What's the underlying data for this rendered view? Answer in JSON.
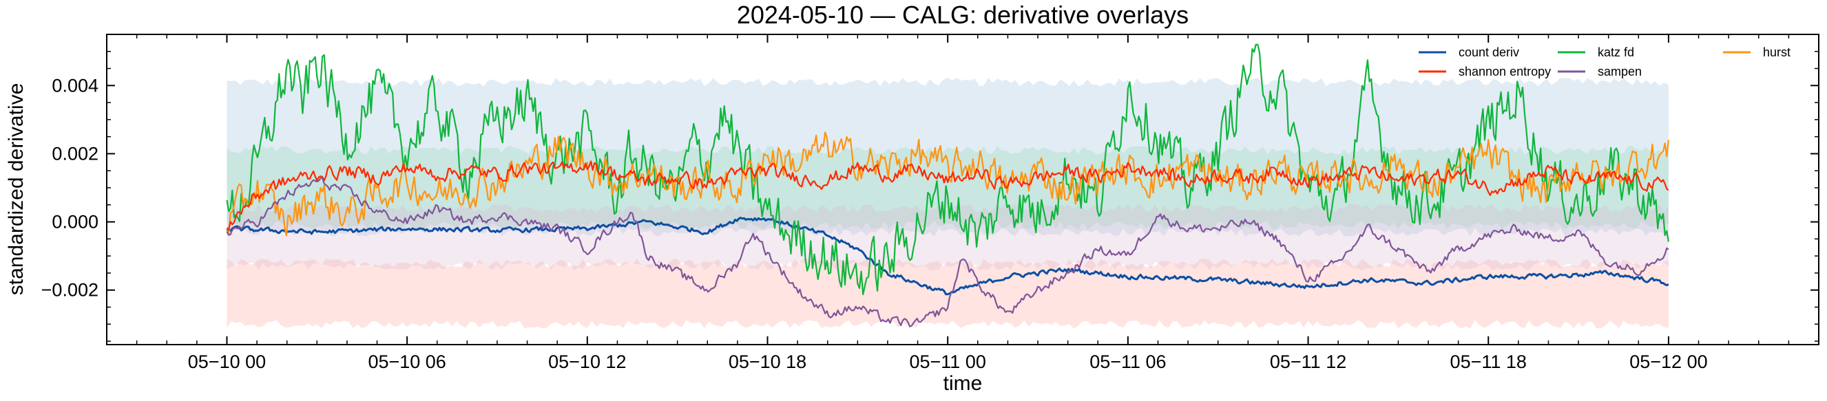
{
  "chart_data": {
    "type": "line",
    "title": "2024-05-10 — CALG: derivative overlays",
    "xlabel": "time",
    "ylabel": "standardized derivative",
    "x_range_hours": [
      -4,
      53
    ],
    "ylim": [
      -0.0036,
      0.0055
    ],
    "x_ticks": [
      {
        "hours": 0,
        "label": "05−10 00"
      },
      {
        "hours": 6,
        "label": "05−10 06"
      },
      {
        "hours": 12,
        "label": "05−10 12"
      },
      {
        "hours": 18,
        "label": "05−10 18"
      },
      {
        "hours": 24,
        "label": "05−11 00"
      },
      {
        "hours": 30,
        "label": "05−11 06"
      },
      {
        "hours": 36,
        "label": "05−11 12"
      },
      {
        "hours": 42,
        "label": "05−11 18"
      },
      {
        "hours": 48,
        "label": "05−12 00"
      }
    ],
    "y_ticks": [
      {
        "value": 0.004,
        "label": "0.004"
      },
      {
        "value": 0.002,
        "label": "0.002"
      },
      {
        "value": 0.0,
        "label": "0.000"
      },
      {
        "value": -0.002,
        "label": "−0.002"
      }
    ],
    "legend_position": "top-right",
    "bands": [
      {
        "name": "katz fd band",
        "color": "#c6d9ec",
        "opacity": 0.5,
        "lower": -0.0003,
        "upper": 0.0041
      },
      {
        "name": "shannon entropy band",
        "color": "#ffb3a8",
        "opacity": 0.35,
        "lower": -0.003,
        "upper": -0.0012
      },
      {
        "name": "hurst band",
        "color": "#8fd6b0",
        "opacity": 0.3,
        "lower": -0.0001,
        "upper": 0.0021
      },
      {
        "name": "sampen band",
        "color": "#d9b8d0",
        "opacity": 0.3,
        "lower": -0.0013,
        "upper": 0.0004
      }
    ],
    "series": [
      {
        "name": "count deriv",
        "color": "#0c4ea2",
        "width": 3,
        "points": [
          [
            0,
            -0.0002
          ],
          [
            3,
            -0.0003
          ],
          [
            6,
            -0.0002
          ],
          [
            9,
            -0.00025
          ],
          [
            12,
            -0.0002
          ],
          [
            14,
            0.0
          ],
          [
            16,
            -0.0003
          ],
          [
            17,
            0.0001
          ],
          [
            18,
            0.0001
          ],
          [
            20,
            -0.0004
          ],
          [
            21,
            -0.0008
          ],
          [
            22,
            -0.0015
          ],
          [
            23,
            -0.0018
          ],
          [
            24,
            -0.0021
          ],
          [
            26,
            -0.0016
          ],
          [
            28,
            -0.0014
          ],
          [
            30,
            -0.0016
          ],
          [
            33,
            -0.0017
          ],
          [
            36,
            -0.0019
          ],
          [
            38,
            -0.0017
          ],
          [
            40,
            -0.0018
          ],
          [
            42,
            -0.0016
          ],
          [
            44,
            -0.0016
          ],
          [
            46,
            -0.0015
          ],
          [
            48,
            -0.0018
          ]
        ]
      },
      {
        "name": "katz fd",
        "color": "#10b53d",
        "width": 2.2,
        "points": [
          [
            0,
            0.0
          ],
          [
            1,
            0.0015
          ],
          [
            2,
            0.0045
          ],
          [
            2.5,
            0.0035
          ],
          [
            3,
            0.0048
          ],
          [
            4,
            0.0025
          ],
          [
            5,
            0.0038
          ],
          [
            6,
            0.0022
          ],
          [
            7,
            0.0035
          ],
          [
            8,
            0.0015
          ],
          [
            9,
            0.003
          ],
          [
            10,
            0.0035
          ],
          [
            11,
            0.0018
          ],
          [
            12,
            0.0025
          ],
          [
            13,
            0.0008
          ],
          [
            13.5,
            0.002
          ],
          [
            14,
            0.0015
          ],
          [
            15,
            0.0008
          ],
          [
            15.5,
            0.0022
          ],
          [
            16,
            0.0018
          ],
          [
            16.5,
            0.0032
          ],
          [
            17,
            0.002
          ],
          [
            18,
            0.0002
          ],
          [
            19,
            -0.0005
          ],
          [
            20,
            -0.001
          ],
          [
            21,
            -0.0016
          ],
          [
            22,
            -0.0012
          ],
          [
            23,
            0.0
          ],
          [
            24,
            0.0008
          ],
          [
            25,
            -0.0005
          ],
          [
            26,
            0.0008
          ],
          [
            27,
            0.0002
          ],
          [
            28,
            0.0015
          ],
          [
            29,
            0.0005
          ],
          [
            30,
            0.004
          ],
          [
            31,
            0.0025
          ],
          [
            32,
            0.001
          ],
          [
            33,
            0.002
          ],
          [
            34,
            0.0045
          ],
          [
            35,
            0.004
          ],
          [
            36,
            0.001
          ],
          [
            37,
            0.0005
          ],
          [
            38,
            0.0038
          ],
          [
            39,
            0.001
          ],
          [
            40,
            0.0006
          ],
          [
            41,
            0.0012
          ],
          [
            42,
            0.0028
          ],
          [
            43,
            0.0038
          ],
          [
            44,
            0.0012
          ],
          [
            45,
            0.0005
          ],
          [
            46,
            0.0015
          ],
          [
            47,
            0.001
          ],
          [
            48,
            -0.0004
          ]
        ]
      },
      {
        "name": "hurst",
        "color": "#ff9412",
        "width": 2.2,
        "points": [
          [
            0,
            0.0
          ],
          [
            1,
            0.001
          ],
          [
            2,
            0.0
          ],
          [
            3,
            0.0008
          ],
          [
            4,
            0.0002
          ],
          [
            5,
            0.0008
          ],
          [
            6,
            0.0012
          ],
          [
            7,
            0.0008
          ],
          [
            8,
            0.001
          ],
          [
            9,
            0.0012
          ],
          [
            10,
            0.0016
          ],
          [
            11,
            0.0022
          ],
          [
            12,
            0.0017
          ],
          [
            13,
            0.0012
          ],
          [
            14,
            0.0015
          ],
          [
            15,
            0.001
          ],
          [
            16,
            0.0012
          ],
          [
            17,
            0.001
          ],
          [
            18,
            0.002
          ],
          [
            19,
            0.0017
          ],
          [
            20,
            0.0022
          ],
          [
            21,
            0.0018
          ],
          [
            22,
            0.0016
          ],
          [
            23,
            0.002
          ],
          [
            24,
            0.0015
          ],
          [
            25,
            0.0018
          ],
          [
            26,
            0.001
          ],
          [
            27,
            0.0015
          ],
          [
            28,
            0.0009
          ],
          [
            29,
            0.0014
          ],
          [
            30,
            0.0015
          ],
          [
            31,
            0.0012
          ],
          [
            32,
            0.0016
          ],
          [
            33,
            0.0013
          ],
          [
            34,
            0.0011
          ],
          [
            35,
            0.0016
          ],
          [
            36,
            0.0011
          ],
          [
            37,
            0.0015
          ],
          [
            38,
            0.0012
          ],
          [
            39,
            0.0018
          ],
          [
            40,
            0.001
          ],
          [
            41,
            0.0015
          ],
          [
            42,
            0.002
          ],
          [
            43,
            0.0012
          ],
          [
            44,
            0.0008
          ],
          [
            45,
            0.0016
          ],
          [
            46,
            0.0012
          ],
          [
            47,
            0.0018
          ],
          [
            48,
            0.002
          ]
        ]
      },
      {
        "name": "shannon entropy",
        "color": "#fe2900",
        "width": 2.2,
        "points": [
          [
            0,
            -0.0001
          ],
          [
            1,
            0.0008
          ],
          [
            2,
            0.0012
          ],
          [
            3,
            0.0014
          ],
          [
            4,
            0.0015
          ],
          [
            5,
            0.0013
          ],
          [
            6,
            0.0016
          ],
          [
            7,
            0.0014
          ],
          [
            8,
            0.0015
          ],
          [
            9,
            0.0014
          ],
          [
            10,
            0.0016
          ],
          [
            11,
            0.0015
          ],
          [
            12,
            0.0017
          ],
          [
            13,
            0.0014
          ],
          [
            14,
            0.0012
          ],
          [
            15,
            0.0013
          ],
          [
            16,
            0.0011
          ],
          [
            17,
            0.0014
          ],
          [
            18,
            0.0015
          ],
          [
            19,
            0.0013
          ],
          [
            20,
            0.0012
          ],
          [
            21,
            0.0016
          ],
          [
            22,
            0.0014
          ],
          [
            23,
            0.0015
          ],
          [
            24,
            0.0012
          ],
          [
            25,
            0.0014
          ],
          [
            26,
            0.0011
          ],
          [
            27,
            0.0013
          ],
          [
            28,
            0.0015
          ],
          [
            29,
            0.0013
          ],
          [
            30,
            0.0016
          ],
          [
            31,
            0.0015
          ],
          [
            32,
            0.0012
          ],
          [
            33,
            0.0014
          ],
          [
            34,
            0.0013
          ],
          [
            35,
            0.0015
          ],
          [
            36,
            0.0012
          ],
          [
            37,
            0.0013
          ],
          [
            38,
            0.0015
          ],
          [
            39,
            0.0012
          ],
          [
            40,
            0.0013
          ],
          [
            41,
            0.0014
          ],
          [
            42,
            0.001
          ],
          [
            43,
            0.0012
          ],
          [
            44,
            0.0015
          ],
          [
            45,
            0.0012
          ],
          [
            46,
            0.0013
          ],
          [
            47,
            0.0012
          ],
          [
            48,
            0.001
          ]
        ]
      },
      {
        "name": "sampen",
        "color": "#7e559a",
        "width": 2.2,
        "points": [
          [
            0,
            -0.0003
          ],
          [
            1,
            0.0
          ],
          [
            2,
            0.0008
          ],
          [
            3,
            0.0012
          ],
          [
            4,
            0.0009
          ],
          [
            5,
            0.0003
          ],
          [
            6,
            0.0
          ],
          [
            7,
            0.0004
          ],
          [
            8,
            0.0
          ],
          [
            9,
            0.0002
          ],
          [
            10,
            0.0
          ],
          [
            11,
            -0.0002
          ],
          [
            12,
            -0.0008
          ],
          [
            13,
            0.0
          ],
          [
            13.5,
            0.0003
          ],
          [
            14,
            -0.001
          ],
          [
            15,
            -0.0015
          ],
          [
            16,
            -0.002
          ],
          [
            17,
            -0.0012
          ],
          [
            17.5,
            -0.0003
          ],
          [
            18,
            -0.0009
          ],
          [
            19,
            -0.002
          ],
          [
            20,
            -0.0027
          ],
          [
            21,
            -0.0025
          ],
          [
            22,
            -0.0029
          ],
          [
            23,
            -0.003
          ],
          [
            24,
            -0.0025
          ],
          [
            24.5,
            -0.001
          ],
          [
            25,
            -0.0018
          ],
          [
            26,
            -0.0027
          ],
          [
            27,
            -0.002
          ],
          [
            28,
            -0.0015
          ],
          [
            29,
            -0.0008
          ],
          [
            30,
            -0.001
          ],
          [
            31,
            0.0002
          ],
          [
            32,
            -0.0002
          ],
          [
            33,
            -0.0002
          ],
          [
            34,
            0.0
          ],
          [
            35,
            -0.0005
          ],
          [
            36,
            -0.0017
          ],
          [
            37,
            -0.0012
          ],
          [
            38,
            -0.0002
          ],
          [
            39,
            -0.0008
          ],
          [
            40,
            -0.0015
          ],
          [
            41,
            -0.0008
          ],
          [
            42,
            -0.0004
          ],
          [
            43,
            -0.0002
          ],
          [
            44,
            -0.0005
          ],
          [
            45,
            -0.0003
          ],
          [
            46,
            -0.0012
          ],
          [
            47,
            -0.0014
          ],
          [
            48,
            -0.0008
          ]
        ]
      }
    ]
  }
}
